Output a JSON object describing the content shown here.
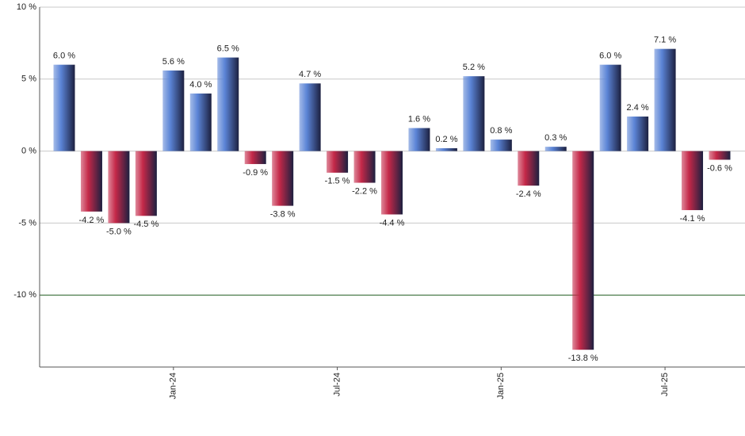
{
  "chart_data": {
    "type": "bar",
    "categories": [
      null,
      null,
      null,
      null,
      "Jan-24",
      null,
      null,
      null,
      null,
      null,
      "Jul-24",
      null,
      null,
      null,
      null,
      null,
      "Jan-25",
      null,
      null,
      null,
      null,
      null,
      "Jul-25",
      null,
      null
    ],
    "values": [
      6.0,
      -4.2,
      -5.0,
      -4.5,
      5.6,
      4.0,
      6.5,
      -0.9,
      -3.8,
      4.7,
      -1.5,
      -2.2,
      -4.4,
      1.6,
      0.2,
      5.2,
      0.8,
      -2.4,
      0.3,
      -13.8,
      6.0,
      2.4,
      7.1,
      -4.1,
      -0.6
    ],
    "value_labels": [
      "6.0 %",
      "-4.2 %",
      "-5.0 %",
      "-4.5 %",
      "5.6 %",
      "4.0 %",
      "6.5 %",
      "-0.9 %",
      "-3.8 %",
      "4.7 %",
      "-1.5 %",
      "-2.2 %",
      "-4.4 %",
      "1.6 %",
      "0.2 %",
      "5.2 %",
      "0.8 %",
      "-2.4 %",
      "0.3 %",
      "-13.8 %",
      "6.0 %",
      "2.4 %",
      "7.1 %",
      "-4.1 %",
      "-0.6 %"
    ],
    "positive_color": "#5b84d6",
    "negative_color": "#c42848",
    "ylim": [
      -15,
      10
    ],
    "yticks": [
      {
        "value": -10,
        "label": "-10 %"
      },
      {
        "value": -5,
        "label": "-5 %"
      },
      {
        "value": 0,
        "label": "0 %"
      },
      {
        "value": 5,
        "label": "5 %"
      },
      {
        "value": 10,
        "label": "10 %"
      }
    ],
    "grid": true,
    "reference_line": {
      "value": -10,
      "color": "#2e6b2e"
    }
  }
}
